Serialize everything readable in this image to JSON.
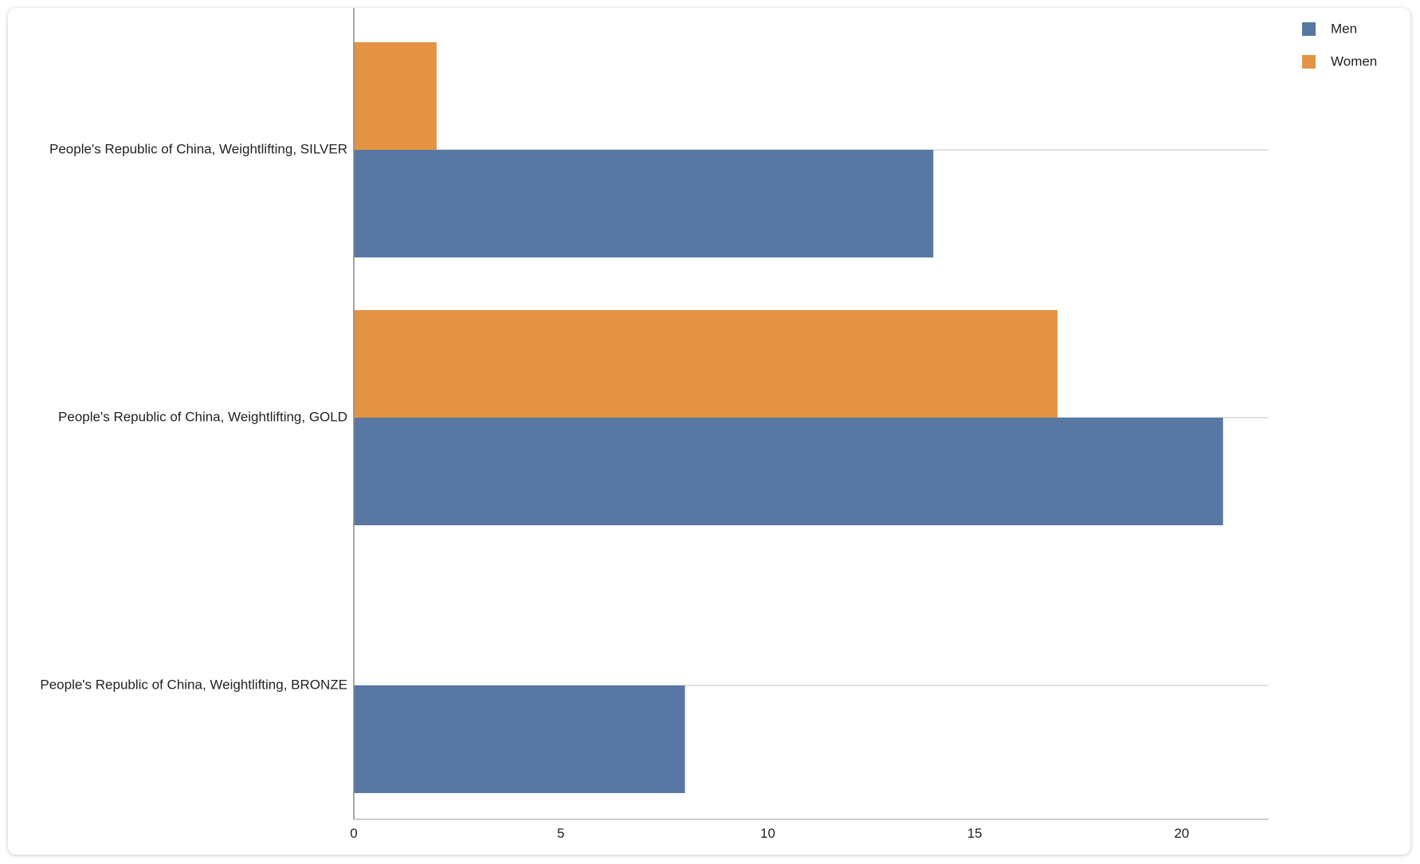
{
  "chart_data": {
    "type": "bar",
    "orientation": "horizontal",
    "categories": [
      "People's Republic of China, Weightlifting, SILVER",
      "People's Republic of China, Weightlifting, GOLD",
      "People's Republic of China, Weightlifting, BRONZE"
    ],
    "series": [
      {
        "name": "Men",
        "color": "#5878a3",
        "values": [
          14,
          21,
          8
        ]
      },
      {
        "name": "Women",
        "color": "#e39343",
        "values": [
          2,
          17,
          0
        ]
      }
    ],
    "xticks": [
      "0",
      "5",
      "10",
      "15",
      "20"
    ],
    "xlim": [
      0,
      22.1
    ],
    "grid": true,
    "legend": "top-right",
    "title": "",
    "xlabel": "",
    "ylabel": ""
  }
}
